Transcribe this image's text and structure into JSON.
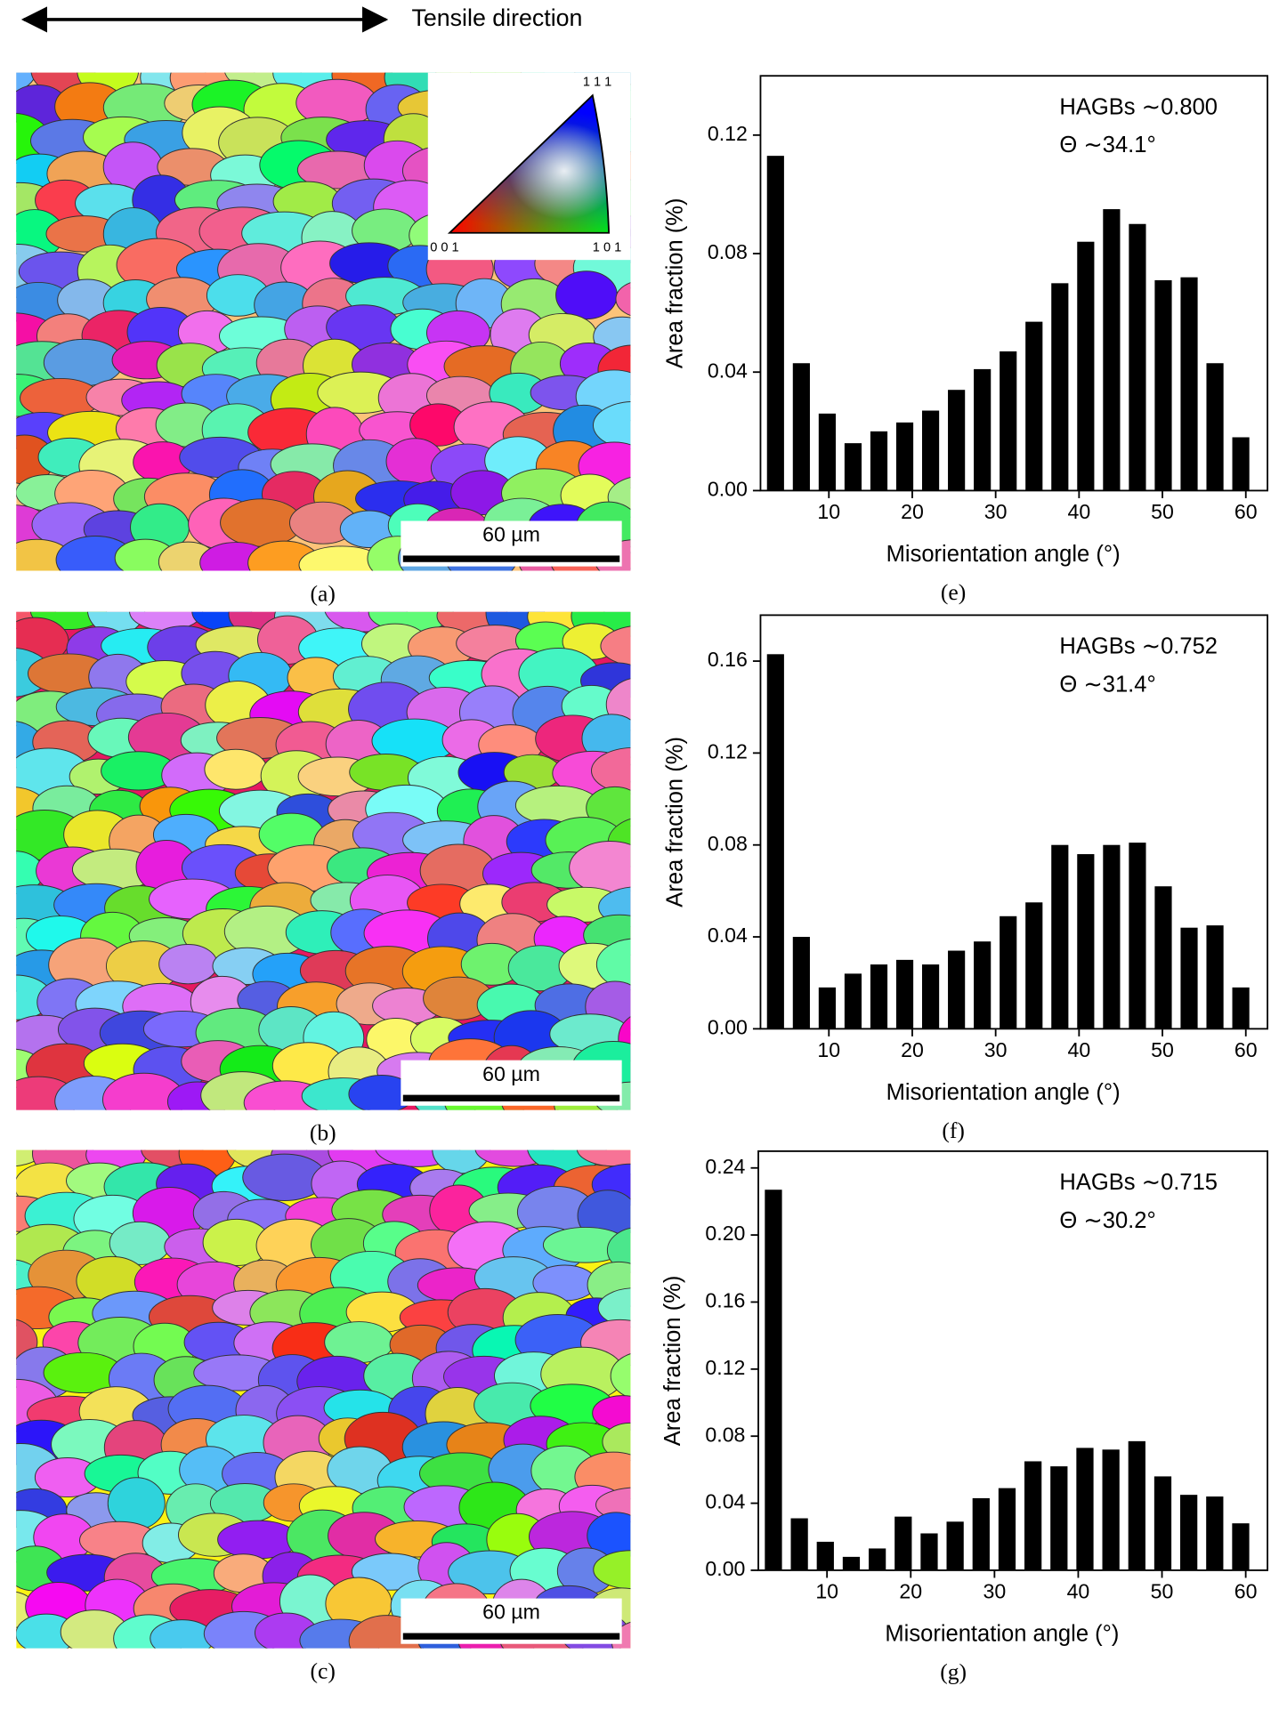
{
  "header": {
    "label": "Tensile direction"
  },
  "legend_triangle": {
    "top": "1 1 1",
    "left": "0 0 1",
    "right": "1 0 1"
  },
  "maps": [
    {
      "label": "(a)",
      "scale_bar": "60 µm"
    },
    {
      "label": "(b)",
      "scale_bar": "60 µm"
    },
    {
      "label": "(c)",
      "scale_bar": "60 µm"
    }
  ],
  "chart_data": [
    {
      "type": "bar",
      "label": "(e)",
      "annotations": [
        "HAGBs ∼0.800",
        "Θ ∼34.1°"
      ],
      "xlabel": "Misorientation angle (°)",
      "ylabel": "Area fraction (%)",
      "color": "#000000",
      "x": [
        3.6,
        6.7,
        9.8,
        12.9,
        16.0,
        19.1,
        22.2,
        25.3,
        28.4,
        31.5,
        34.6,
        37.7,
        40.8,
        43.9,
        47.0,
        50.1,
        53.2,
        56.3,
        59.4
      ],
      "values": [
        0.113,
        0.043,
        0.026,
        0.016,
        0.02,
        0.023,
        0.027,
        0.034,
        0.041,
        0.047,
        0.057,
        0.07,
        0.084,
        0.095,
        0.09,
        0.071,
        0.072,
        0.043,
        0.018
      ],
      "xlim": [
        1.8,
        62.6
      ],
      "xticks": [
        10,
        20,
        30,
        40,
        50,
        60
      ],
      "ylim": [
        0,
        0.14
      ],
      "yticks": [
        {
          "value": 0,
          "label": "0.00"
        },
        0.04,
        0.08,
        0.12
      ]
    },
    {
      "type": "bar",
      "label": "(f)",
      "annotations": [
        "HAGBs ∼0.752",
        "Θ ∼31.4°"
      ],
      "xlabel": "Misorientation angle (°)",
      "ylabel": "Area fraction (%)",
      "color": "#000000",
      "x": [
        3.6,
        6.7,
        9.8,
        12.9,
        16.0,
        19.1,
        22.2,
        25.3,
        28.4,
        31.5,
        34.6,
        37.7,
        40.8,
        43.9,
        47.0,
        50.1,
        53.2,
        56.3,
        59.4
      ],
      "values": [
        0.163,
        0.04,
        0.018,
        0.024,
        0.028,
        0.03,
        0.028,
        0.034,
        0.038,
        0.049,
        0.055,
        0.08,
        0.076,
        0.08,
        0.081,
        0.062,
        0.044,
        0.045,
        0.018
      ],
      "xlim": [
        1.8,
        62.6
      ],
      "xticks": [
        10,
        20,
        30,
        40,
        50,
        60
      ],
      "ylim": [
        0,
        0.18
      ],
      "yticks": [
        {
          "value": 0,
          "label": "0.00"
        },
        0.04,
        0.08,
        0.12,
        0.16
      ]
    },
    {
      "type": "bar",
      "label": "(g)",
      "annotations": [
        "HAGBs ∼0.715",
        "Θ ∼30.2°"
      ],
      "xlabel": "Misorientation angle (°)",
      "ylabel": "Area fraction (%)",
      "color": "#000000",
      "x": [
        3.6,
        6.7,
        9.8,
        12.9,
        16.0,
        19.1,
        22.2,
        25.3,
        28.4,
        31.5,
        34.6,
        37.7,
        40.8,
        43.9,
        47.0,
        50.1,
        53.2,
        56.3,
        59.4
      ],
      "values": [
        0.227,
        0.031,
        0.017,
        0.008,
        0.013,
        0.032,
        0.022,
        0.029,
        0.043,
        0.049,
        0.065,
        0.062,
        0.073,
        0.072,
        0.077,
        0.056,
        0.045,
        0.044,
        0.028
      ],
      "xlim": [
        1.8,
        62.6
      ],
      "xticks": [
        10,
        20,
        30,
        40,
        50,
        60
      ],
      "ylim": [
        0,
        0.25
      ],
      "yticks": [
        {
          "value": 0,
          "label": "0.00"
        },
        0.04,
        0.08,
        0.12,
        0.16,
        {
          "value": 0.2,
          "label": "0.20"
        },
        0.24
      ]
    }
  ]
}
